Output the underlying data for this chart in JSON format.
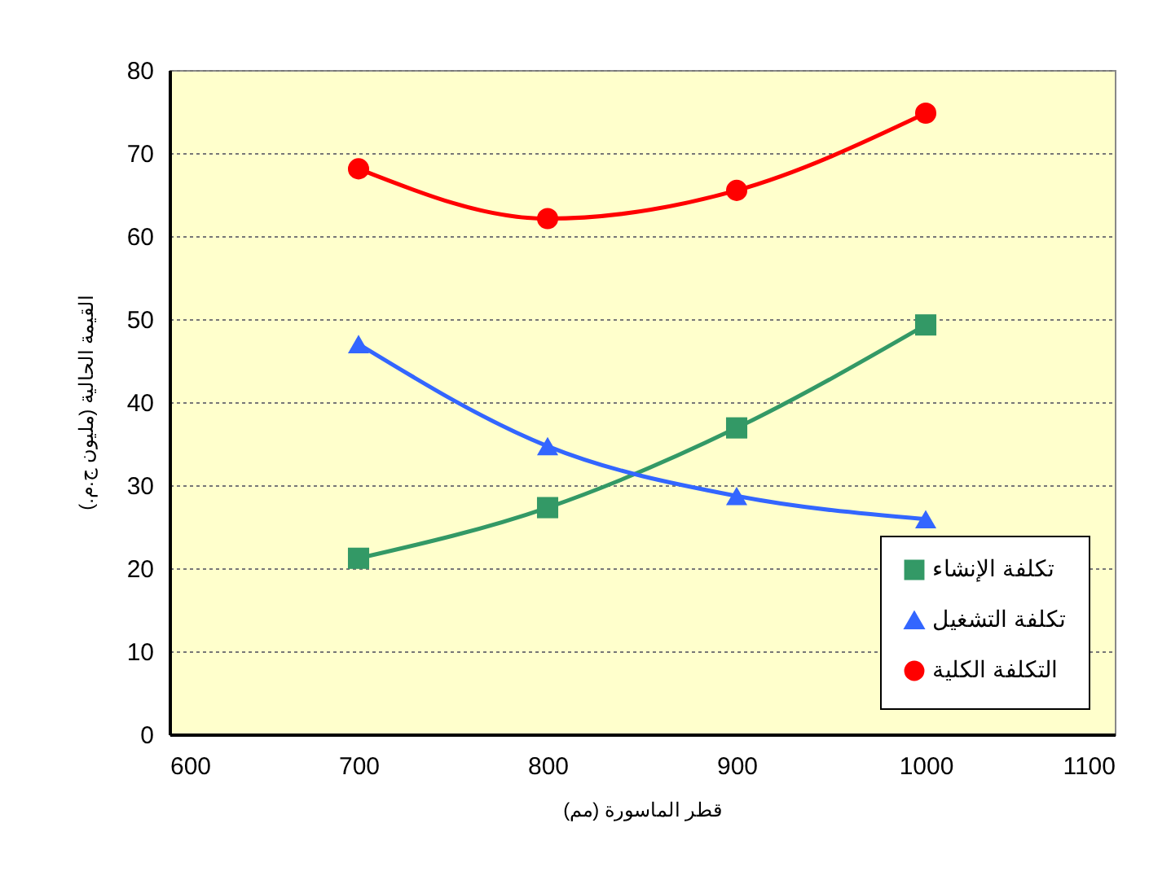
{
  "chart_data": {
    "type": "line",
    "xlabel": "قطر الماسورة (مم)",
    "ylabel": "القيمة الحالية (مليون ج.م.)",
    "x": [
      700,
      800,
      900,
      1000
    ],
    "series": [
      {
        "name": "تكلفة الإنشاء",
        "color": "#339966",
        "marker": "square",
        "values": [
          21.2,
          27.3,
          36.9,
          49.3
        ]
      },
      {
        "name": "تكلفة التشغيل",
        "color": "#3366ff",
        "marker": "triangle",
        "values": [
          47.0,
          34.7,
          28.7,
          25.9
        ]
      },
      {
        "name": "التكلفة الكلية",
        "color": "#ff0000",
        "marker": "circle",
        "values": [
          68.1,
          62.1,
          65.5,
          74.8
        ]
      }
    ],
    "xlim": [
      600,
      1100
    ],
    "xticks": [
      600,
      700,
      800,
      900,
      1000,
      1100
    ],
    "ylim": [
      0,
      80
    ],
    "yticks": [
      0,
      10,
      20,
      30,
      40,
      50,
      60,
      70,
      80
    ],
    "grid": "y",
    "legend": "bottom right",
    "line_style": "solid"
  }
}
